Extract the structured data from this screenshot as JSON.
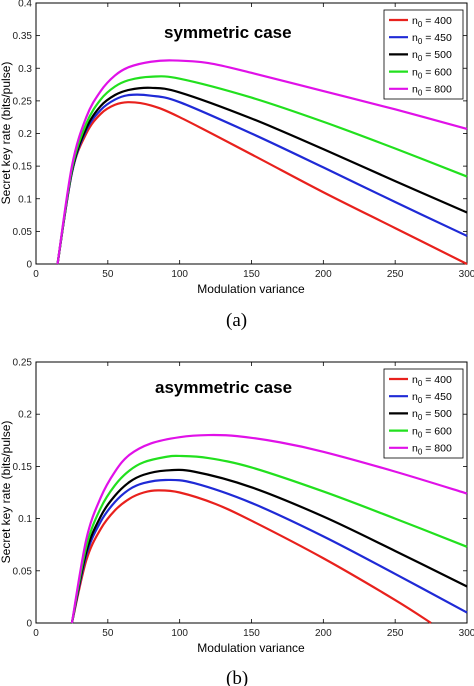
{
  "chart_data": [
    {
      "type": "line",
      "title": "symmetric case",
      "xlabel": "Modulation variance",
      "ylabel": "Secret key rate (bits/pulse)",
      "caption": "(a)",
      "xlim": [
        0,
        300
      ],
      "ylim": [
        0,
        0.4
      ],
      "xticks": [
        "0",
        "50",
        "100",
        "150",
        "200",
        "250",
        "300"
      ],
      "yticks": [
        "0",
        "0.05",
        "0.1",
        "0.15",
        "0.2",
        "0.25",
        "0.3",
        "0.35",
        "0.4"
      ],
      "legend_position": "top-right",
      "grid": false,
      "series": [
        {
          "name": "n0 = 400",
          "color": "#e8211d",
          "x": [
            15,
            25,
            35,
            45,
            55,
            65,
            80,
            100,
            150,
            200,
            250,
            300
          ],
          "y": [
            0,
            0.14,
            0.2,
            0.23,
            0.244,
            0.248,
            0.243,
            0.225,
            0.168,
            0.11,
            0.055,
            0
          ]
        },
        {
          "name": "n0 = 450",
          "color": "#1f2ad6",
          "x": [
            15,
            25,
            35,
            45,
            55,
            65,
            80,
            100,
            150,
            200,
            250,
            300
          ],
          "y": [
            0,
            0.14,
            0.205,
            0.236,
            0.252,
            0.259,
            0.258,
            0.248,
            0.2,
            0.148,
            0.095,
            0.043
          ]
        },
        {
          "name": "n0 = 500",
          "color": "#000000",
          "x": [
            15,
            25,
            35,
            45,
            55,
            65,
            80,
            100,
            150,
            200,
            250,
            300
          ],
          "y": [
            0,
            0.142,
            0.208,
            0.242,
            0.259,
            0.267,
            0.27,
            0.263,
            0.223,
            0.176,
            0.127,
            0.079
          ]
        },
        {
          "name": "n0 = 600",
          "color": "#22e01e",
          "x": [
            15,
            25,
            35,
            45,
            55,
            65,
            80,
            100,
            150,
            200,
            250,
            300
          ],
          "y": [
            0,
            0.145,
            0.215,
            0.252,
            0.272,
            0.282,
            0.287,
            0.284,
            0.255,
            0.218,
            0.177,
            0.134
          ]
        },
        {
          "name": "n0 = 800",
          "color": "#e011e8",
          "x": [
            15,
            25,
            35,
            45,
            55,
            65,
            80,
            95,
            120,
            150,
            200,
            250,
            300
          ],
          "y": [
            0,
            0.15,
            0.225,
            0.265,
            0.289,
            0.302,
            0.31,
            0.312,
            0.308,
            0.293,
            0.265,
            0.237,
            0.207
          ]
        }
      ]
    },
    {
      "type": "line",
      "title": "asymmetric case",
      "xlabel": "Modulation variance",
      "ylabel": "Secret key rate (bits/pulse)",
      "caption": "(b)",
      "xlim": [
        0,
        300
      ],
      "ylim": [
        0,
        0.25
      ],
      "xticks": [
        "0",
        "50",
        "100",
        "150",
        "200",
        "250",
        "300"
      ],
      "yticks": [
        "0",
        "0.05",
        "0.1",
        "0.15",
        "0.2",
        "0.25"
      ],
      "legend_position": "top-right",
      "grid": false,
      "series": [
        {
          "name": "n0 = 400",
          "color": "#e8211d",
          "x": [
            25,
            35,
            45,
            55,
            65,
            75,
            85,
            100,
            125,
            150,
            200,
            250,
            275
          ],
          "y": [
            0,
            0.06,
            0.09,
            0.108,
            0.119,
            0.125,
            0.127,
            0.125,
            0.114,
            0.098,
            0.062,
            0.022,
            0
          ]
        },
        {
          "name": "n0 = 450",
          "color": "#1f2ad6",
          "x": [
            25,
            35,
            45,
            55,
            65,
            75,
            90,
            110,
            150,
            200,
            250,
            300
          ],
          "y": [
            0,
            0.065,
            0.097,
            0.116,
            0.128,
            0.134,
            0.137,
            0.134,
            0.115,
            0.083,
            0.047,
            0.01
          ]
        },
        {
          "name": "n0 = 500",
          "color": "#000000",
          "x": [
            25,
            35,
            45,
            55,
            65,
            75,
            90,
            110,
            150,
            200,
            250,
            300
          ],
          "y": [
            0,
            0.068,
            0.102,
            0.122,
            0.135,
            0.142,
            0.146,
            0.145,
            0.13,
            0.102,
            0.069,
            0.035
          ]
        },
        {
          "name": "n0 = 600",
          "color": "#22e01e",
          "x": [
            25,
            35,
            45,
            55,
            65,
            75,
            90,
            100,
            120,
            150,
            200,
            250,
            300
          ],
          "y": [
            0,
            0.073,
            0.11,
            0.132,
            0.146,
            0.154,
            0.159,
            0.16,
            0.158,
            0.149,
            0.126,
            0.1,
            0.073
          ]
        },
        {
          "name": "n0 = 800",
          "color": "#e011e8",
          "x": [
            25,
            35,
            45,
            55,
            65,
            80,
            100,
            120,
            140,
            170,
            200,
            250,
            300
          ],
          "y": [
            0,
            0.08,
            0.12,
            0.145,
            0.161,
            0.172,
            0.178,
            0.18,
            0.179,
            0.173,
            0.164,
            0.145,
            0.124
          ]
        }
      ]
    }
  ]
}
